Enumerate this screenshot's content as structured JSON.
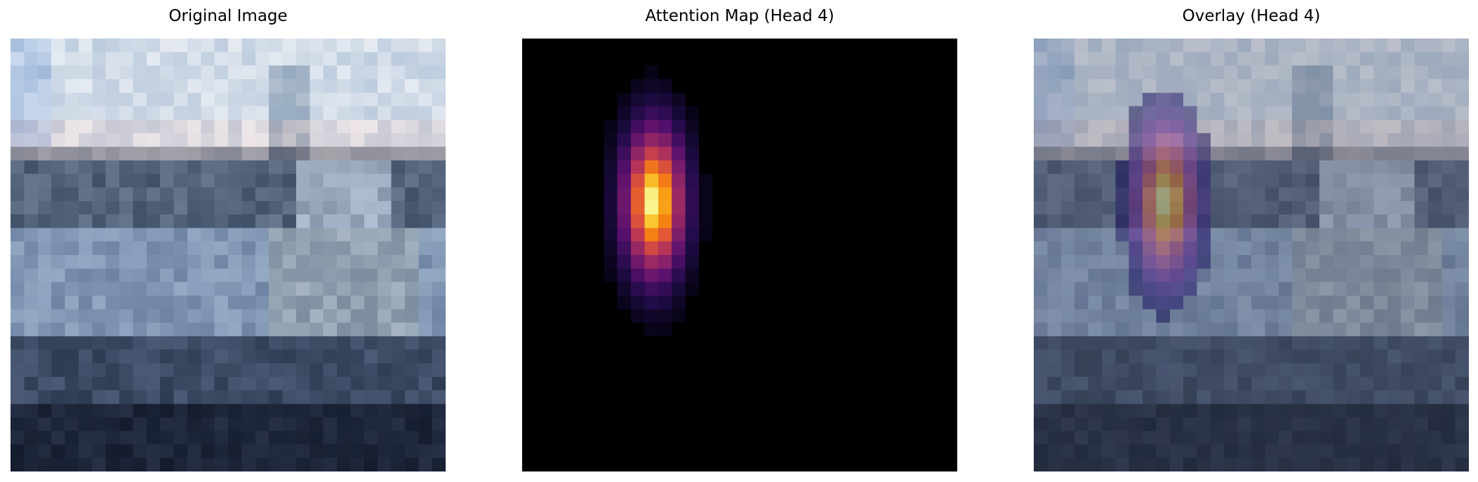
{
  "panels": [
    {
      "title": "Original Image",
      "content": "photo-pixelated-ship-harbor"
    },
    {
      "title": "Attention Map (Head 4)",
      "content": "attention-heatmap",
      "colormap": "inferno"
    },
    {
      "title": "Overlay (Head 4)",
      "content": "photo-with-attention-overlay",
      "colormap": "inferno"
    }
  ]
}
